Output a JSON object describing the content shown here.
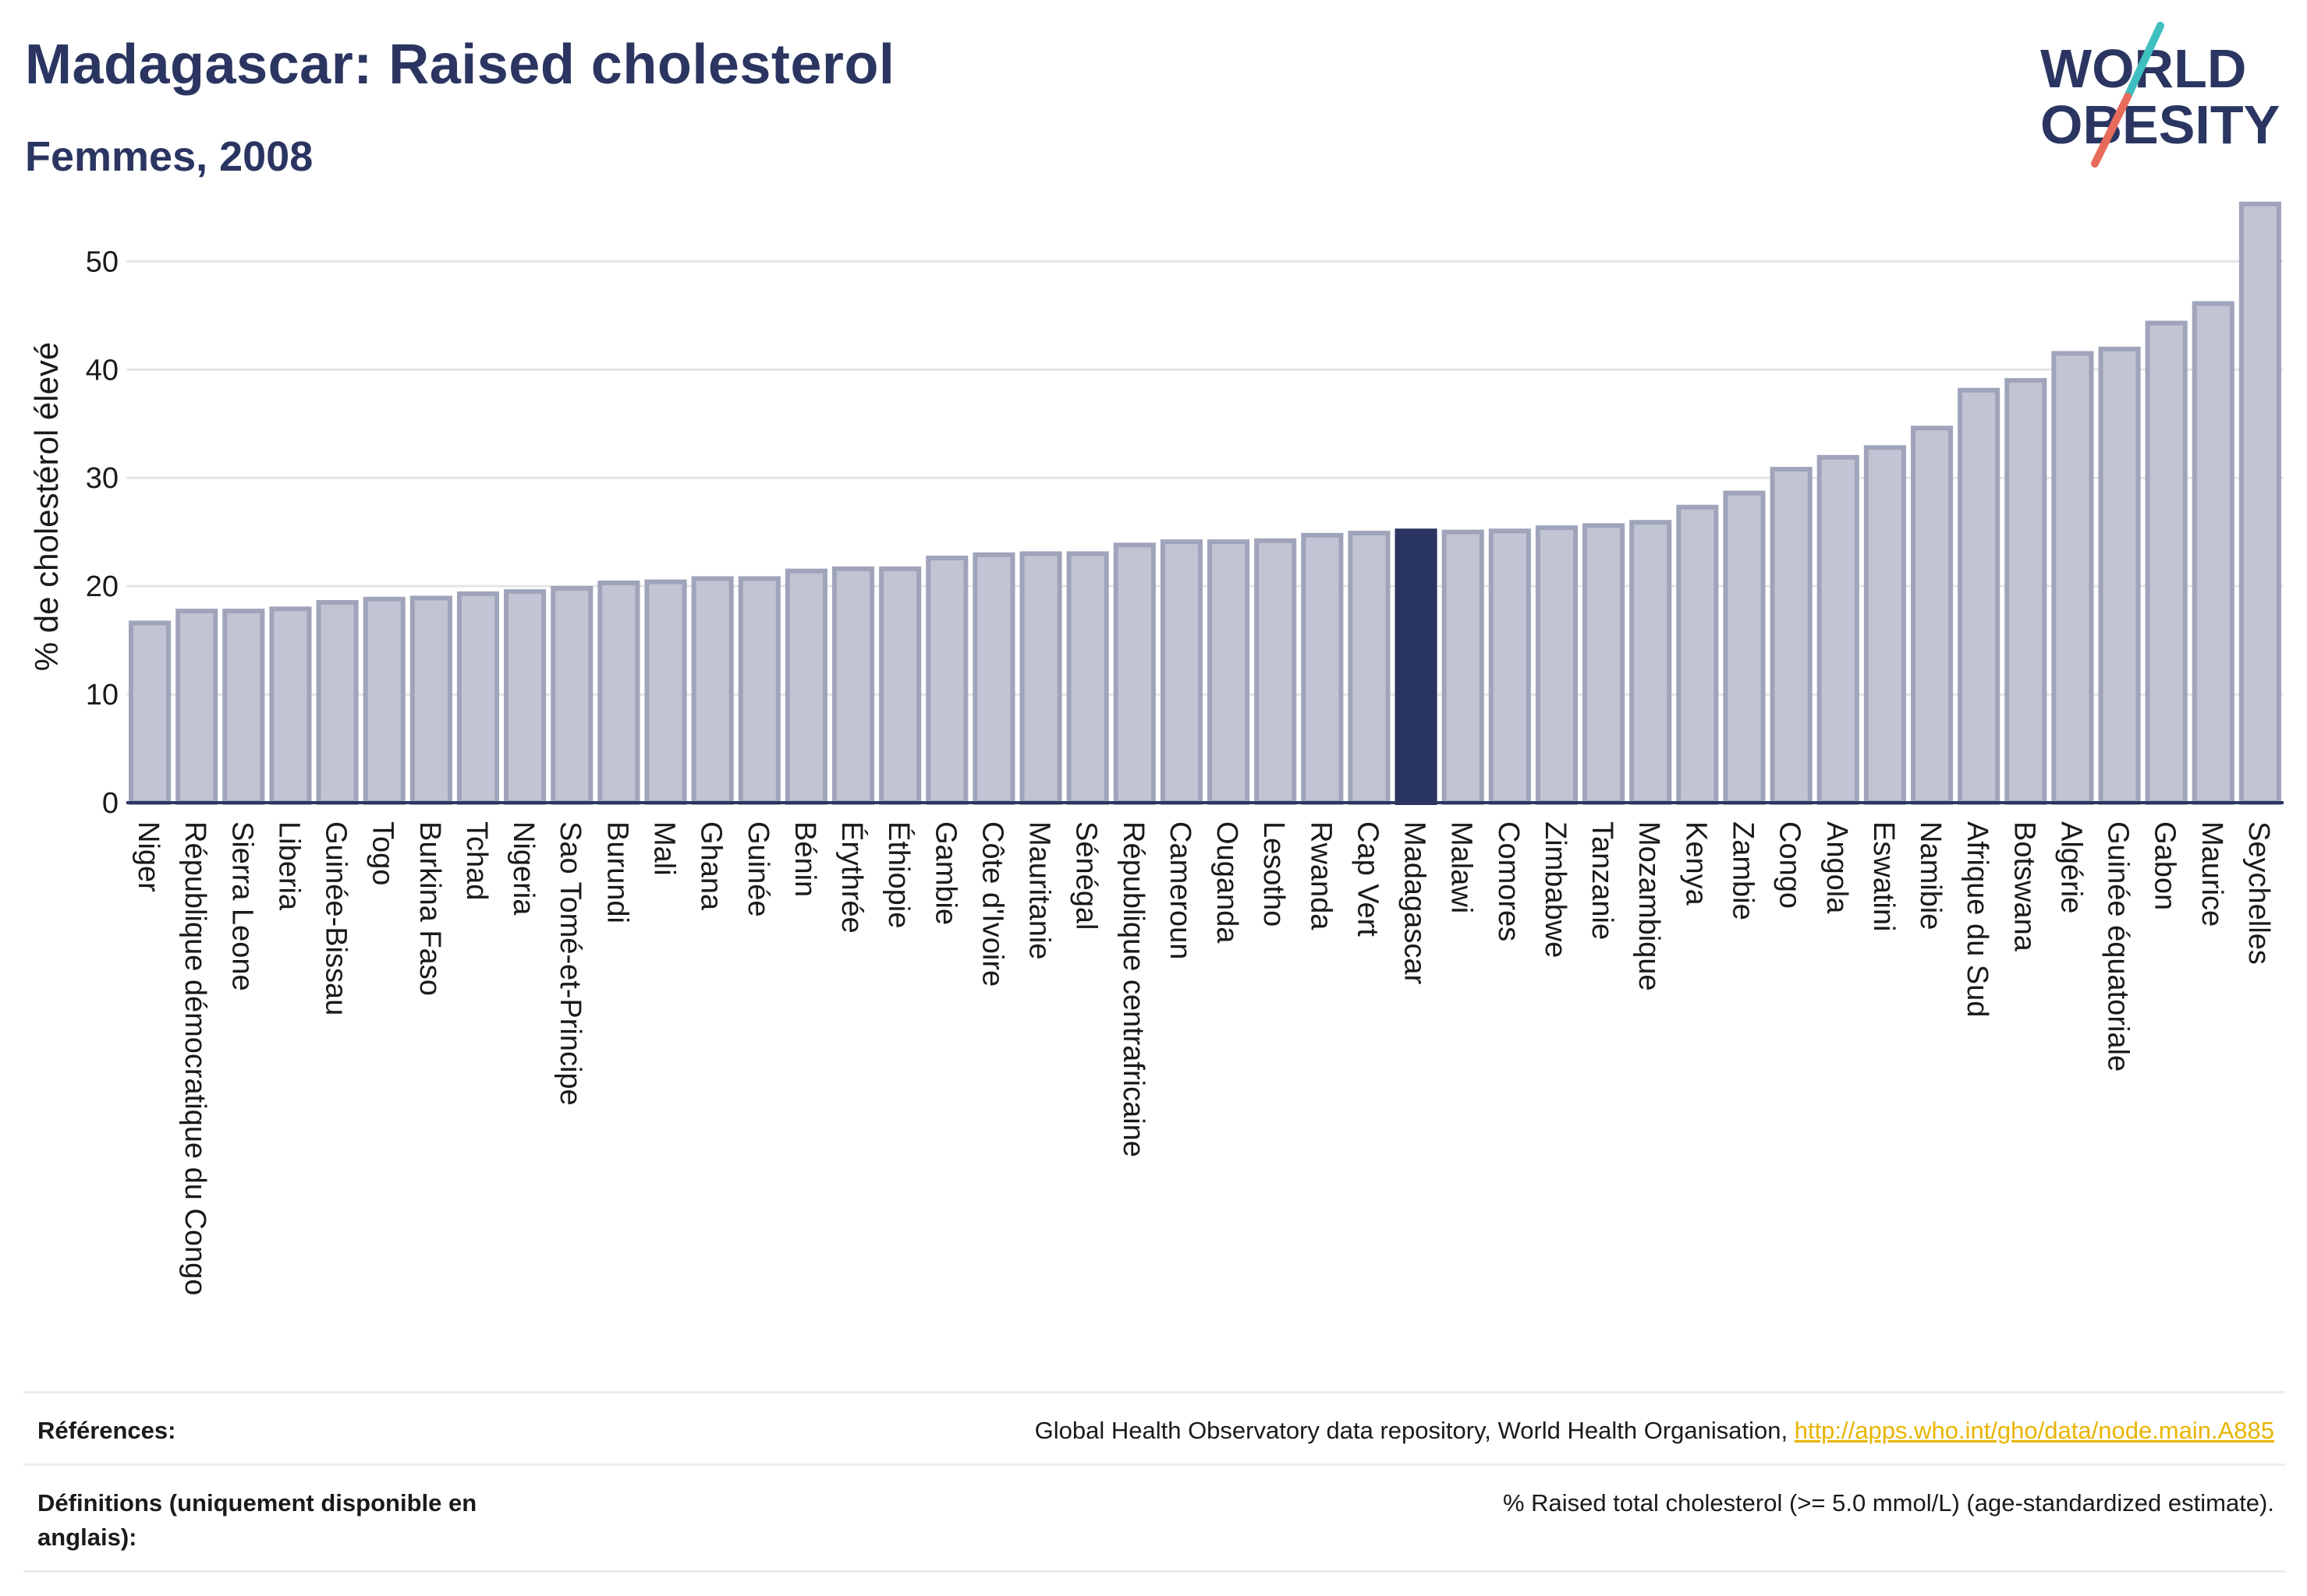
{
  "header": {
    "title": "Madagascar: Raised cholesterol",
    "subtitle": "Femmes, 2008"
  },
  "logo": {
    "line1": "WORLD",
    "line2": "OBESITY",
    "accent_teal": "#3fbfbf",
    "accent_coral": "#e86a5a",
    "text_color": "#2b3561"
  },
  "colors": {
    "bar_fill": "#c0c4d3",
    "bar_stroke": "#9fa4ba",
    "highlight_fill": "#2b3561",
    "axis": "#2b3561",
    "grid": "#e5e5e5"
  },
  "chart_data": {
    "type": "bar",
    "ylabel": "% de cholestérol élevé",
    "ylim": [
      0,
      56
    ],
    "yticks": [
      0,
      10,
      20,
      30,
      40,
      50
    ],
    "grid": true,
    "highlight": "Madagascar",
    "categories": [
      "Niger",
      "République démocratique du Congo",
      "Sierra Leone",
      "Liberia",
      "Guinée-Bissau",
      "Togo",
      "Burkina Faso",
      "Tchad",
      "Nigeria",
      "Sao Tomé-et-Principe",
      "Burundi",
      "Mali",
      "Ghana",
      "Guinée",
      "Bénin",
      "Érythrée",
      "Éthiopie",
      "Gambie",
      "Côte d'Ivoire",
      "Mauritanie",
      "Sénégal",
      "République centrafricaine",
      "Cameroun",
      "Ouganda",
      "Lesotho",
      "Rwanda",
      "Cap Vert",
      "Madagascar",
      "Malawi",
      "Comores",
      "Zimbabwe",
      "Tanzanie",
      "Mozambique",
      "Kenya",
      "Zambie",
      "Congo",
      "Angola",
      "Eswatini",
      "Namibie",
      "Afrique du Sud",
      "Botswana",
      "Algérie",
      "Guinée équatoriale",
      "Gabon",
      "Maurice",
      "Seychelles"
    ],
    "values": [
      16.6,
      17.7,
      17.7,
      17.9,
      18.5,
      18.8,
      18.9,
      19.3,
      19.5,
      19.8,
      20.3,
      20.4,
      20.7,
      20.7,
      21.4,
      21.6,
      21.6,
      22.6,
      22.9,
      23.0,
      23.0,
      23.8,
      24.1,
      24.1,
      24.2,
      24.7,
      24.9,
      25.1,
      25.0,
      25.1,
      25.4,
      25.6,
      25.9,
      27.3,
      28.6,
      30.8,
      31.9,
      32.8,
      34.6,
      38.1,
      39.0,
      41.5,
      41.9,
      44.3,
      46.1,
      55.3
    ]
  },
  "references": {
    "sources_label": "Références:",
    "sources_text": "Global Health Observatory data repository, World Health Organisation, ",
    "sources_link": "http://apps.who.int/gho/data/node.main.A885",
    "definitions_label": "Définitions (uniquement disponible en anglais):",
    "definitions_text": "% Raised total cholesterol (>= 5.0 mmol/L) (age-standardized estimate)."
  }
}
